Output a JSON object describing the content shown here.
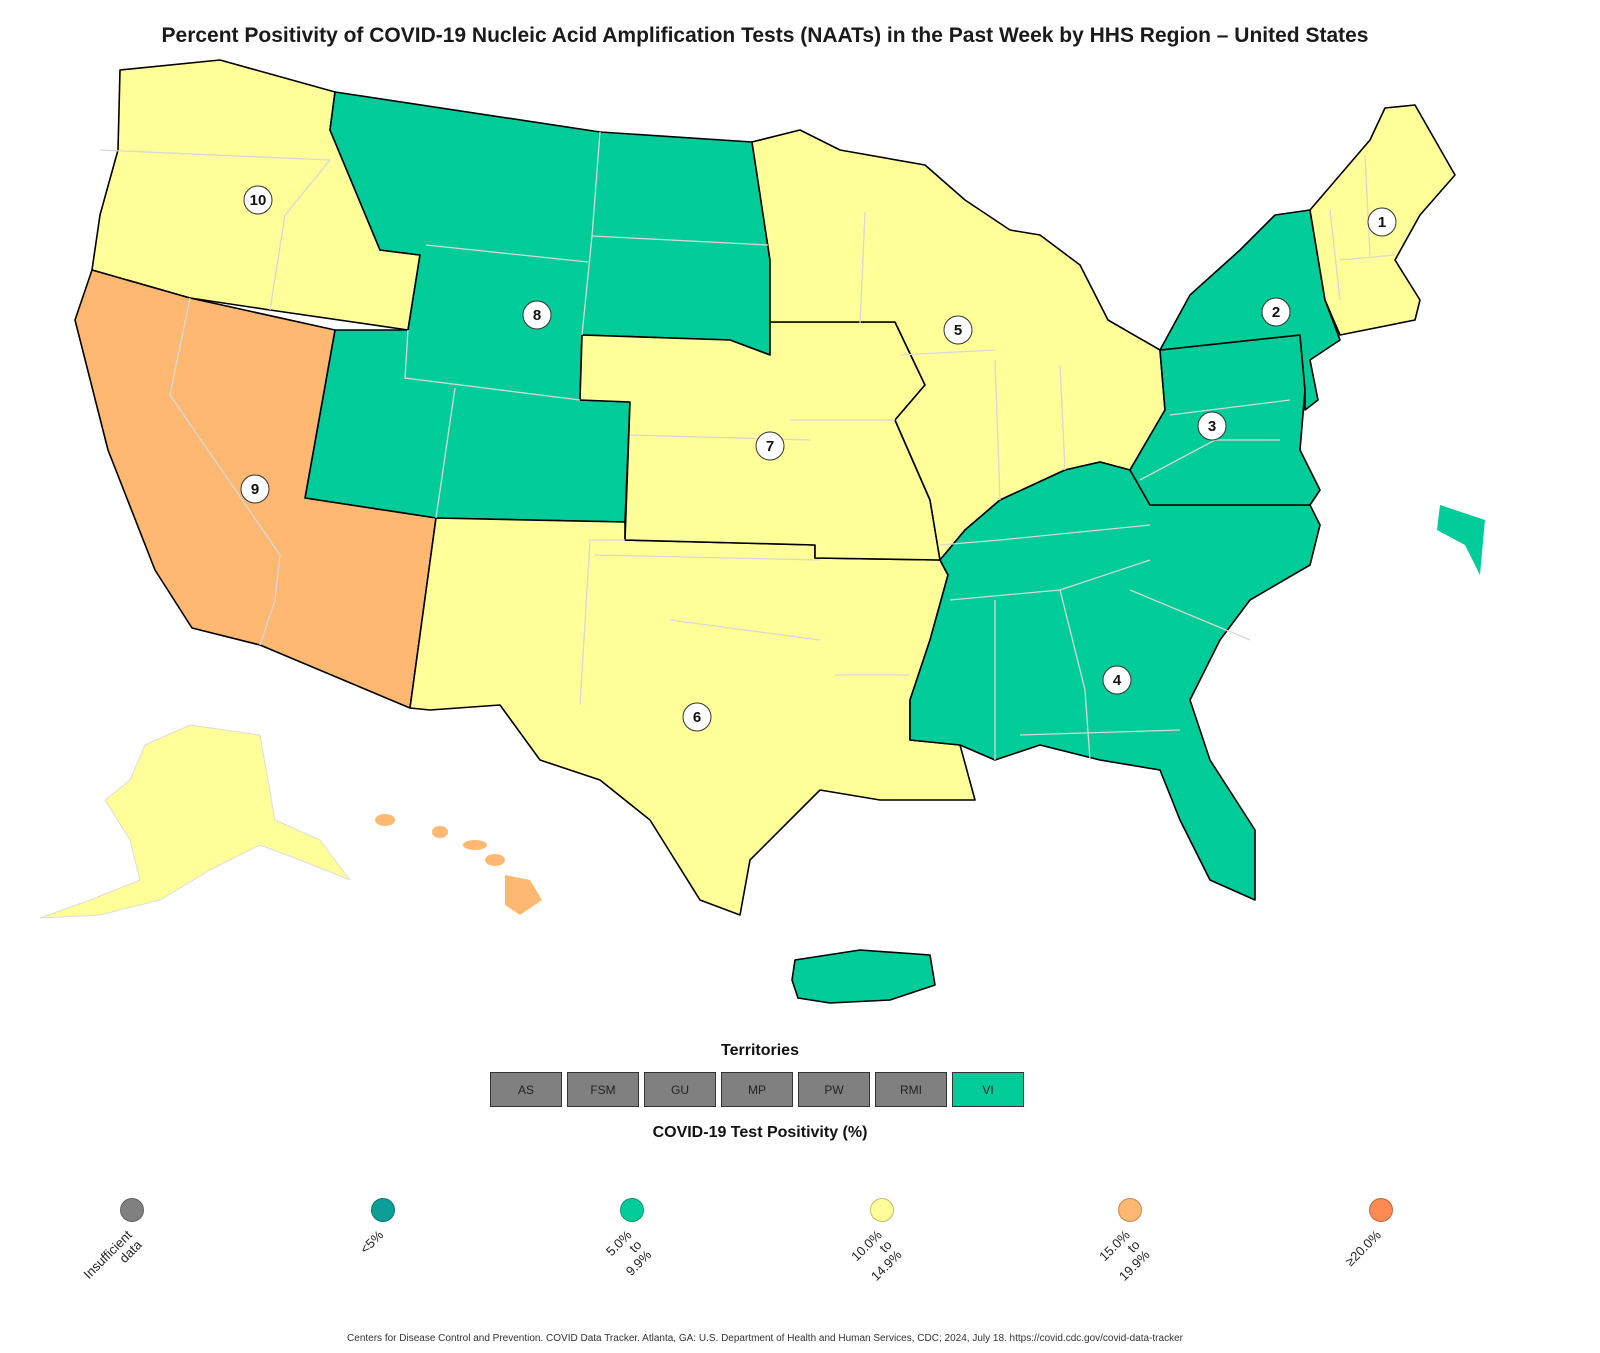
{
  "title": "Percent Positivity of COVID-19 Nucleic Acid Amplification Tests (NAATs) in the Past Week by HHS Region – United States",
  "colors": {
    "insufficient": "#808080",
    "lt5": "#0e9e98",
    "r5to9": "#00cc99",
    "r10to14": "#ffff99",
    "r15to19": "#ffb871",
    "ge20": "#ff8a52"
  },
  "regions": [
    {
      "id": "1",
      "label": "1",
      "category": "r10to14"
    },
    {
      "id": "2",
      "label": "2",
      "category": "r5to9"
    },
    {
      "id": "3",
      "label": "3",
      "category": "r5to9"
    },
    {
      "id": "4",
      "label": "4",
      "category": "r5to9"
    },
    {
      "id": "5",
      "label": "5",
      "category": "r10to14"
    },
    {
      "id": "6",
      "label": "6",
      "category": "r10to14"
    },
    {
      "id": "7",
      "label": "7",
      "category": "r10to14"
    },
    {
      "id": "8",
      "label": "8",
      "category": "r5to9"
    },
    {
      "id": "9",
      "label": "9",
      "category": "r15to19"
    },
    {
      "id": "10",
      "label": "10",
      "category": "r10to14"
    }
  ],
  "extra_areas": {
    "alaska": "r10to14",
    "hawaii": "r15to19",
    "puerto_rico": "r5to9",
    "virgin_islands": "r5to9"
  },
  "territories": {
    "title": "Territories",
    "items": [
      {
        "label": "AS",
        "category": "insufficient"
      },
      {
        "label": "FSM",
        "category": "insufficient"
      },
      {
        "label": "GU",
        "category": "insufficient"
      },
      {
        "label": "MP",
        "category": "insufficient"
      },
      {
        "label": "PW",
        "category": "insufficient"
      },
      {
        "label": "RMI",
        "category": "insufficient"
      },
      {
        "label": "VI",
        "category": "r5to9"
      }
    ]
  },
  "legend": {
    "title": "COVID-19 Test Positivity (%)",
    "items": [
      {
        "label": "Insufficient\ndata",
        "category": "insufficient"
      },
      {
        "label": "<5%",
        "category": "lt5"
      },
      {
        "label": "5.0% to 9.9%",
        "category": "r5to9"
      },
      {
        "label": "10.0% to\n14.9%",
        "category": "r10to14"
      },
      {
        "label": "15.0% to\n19.9%",
        "category": "r15to19"
      },
      {
        "label": "≥20.0%",
        "category": "ge20"
      }
    ]
  },
  "source": "Centers for Disease Control and Prevention. COVID Data Tracker. Atlanta, GA: U.S. Department of Health and Human Services, CDC; 2024, July 18. https://covid.cdc.gov/covid-data-tracker"
}
